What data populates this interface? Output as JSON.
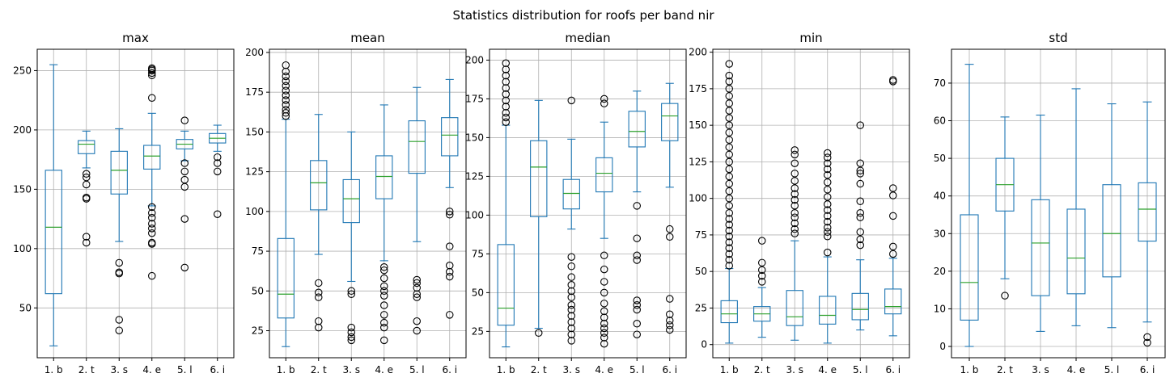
{
  "chart_data": {
    "type": "box",
    "title": "Statistics distribution for roofs per band nir",
    "categories": [
      "1. b",
      "2. t",
      "3. s",
      "4. e",
      "5. l",
      "6. i"
    ],
    "style": {
      "box_color": "#1f77b4",
      "median_color": "#2ca02c",
      "outlier_edge": "#000000",
      "grid_color": "#b0b0b0"
    },
    "grid": true,
    "panels": [
      {
        "title": "max",
        "ylim": [
          8,
          268
        ],
        "yticks": [
          50,
          100,
          150,
          200,
          250
        ],
        "boxes": [
          {
            "whislo": 18,
            "q1": 62,
            "med": 118,
            "q3": 166,
            "whishi": 255,
            "fliers": []
          },
          {
            "whislo": 168,
            "q1": 180,
            "med": 188,
            "q3": 191,
            "whishi": 199,
            "fliers": [
              105,
              110,
              142,
              143,
              154,
              160,
              163
            ]
          },
          {
            "whislo": 106,
            "q1": 146,
            "med": 166,
            "q3": 182,
            "whishi": 201,
            "fliers": [
              31,
              40,
              79,
              80,
              88
            ]
          },
          {
            "whislo": 136,
            "q1": 167,
            "med": 178,
            "q3": 187,
            "whishi": 214,
            "fliers": [
              77,
              104,
              105,
              113,
              117,
              121,
              126,
              130,
              135,
              227,
              246,
              248,
              250,
              251,
              252
            ]
          },
          {
            "whislo": 174,
            "q1": 184,
            "med": 188,
            "q3": 192,
            "whishi": 199,
            "fliers": [
              84,
              125,
              152,
              158,
              165,
              172,
              208
            ]
          },
          {
            "whislo": 182,
            "q1": 189,
            "med": 193,
            "q3": 197,
            "whishi": 204,
            "fliers": [
              129,
              165,
              172,
              177
            ]
          }
        ]
      },
      {
        "title": "mean",
        "ylim": [
          8,
          202
        ],
        "yticks": [
          25,
          50,
          75,
          100,
          125,
          150,
          175,
          200
        ],
        "boxes": [
          {
            "whislo": 15,
            "q1": 33,
            "med": 48,
            "q3": 83,
            "whishi": 158,
            "fliers": [
              160,
              162,
              164,
              167,
              170,
              173,
              176,
              179,
              182,
              185,
              188,
              192
            ]
          },
          {
            "whislo": 73,
            "q1": 101,
            "med": 118,
            "q3": 132,
            "whishi": 161,
            "fliers": [
              27,
              31,
              46,
              49,
              55
            ]
          },
          {
            "whislo": 56,
            "q1": 93,
            "med": 108,
            "q3": 120,
            "whishi": 150,
            "fliers": [
              19,
              21,
              24,
              27,
              48,
              50
            ]
          },
          {
            "whislo": 69,
            "q1": 108,
            "med": 122,
            "q3": 135,
            "whishi": 167,
            "fliers": [
              19,
              27,
              30,
              35,
              41,
              47,
              50,
              53,
              58,
              63,
              65
            ]
          },
          {
            "whislo": 81,
            "q1": 124,
            "med": 144,
            "q3": 157,
            "whishi": 178,
            "fliers": [
              25,
              31,
              46,
              48,
              52,
              55,
              57
            ]
          },
          {
            "whislo": 115,
            "q1": 135,
            "med": 148,
            "q3": 159,
            "whishi": 183,
            "fliers": [
              35,
              59,
              62,
              66,
              78,
              98,
              100
            ]
          }
        ]
      },
      {
        "title": "median",
        "ylim": [
          8,
          207
        ],
        "yticks": [
          25,
          50,
          75,
          100,
          125,
          150,
          175,
          200
        ],
        "boxes": [
          {
            "whislo": 15,
            "q1": 29,
            "med": 40,
            "q3": 81,
            "whishi": 158,
            "fliers": [
              160,
              163,
              166,
              170,
              174,
              178,
              182,
              186,
              190,
              194,
              198
            ]
          },
          {
            "whislo": 27,
            "q1": 99,
            "med": 131,
            "q3": 148,
            "whishi": 174,
            "fliers": [
              24
            ]
          },
          {
            "whislo": 91,
            "q1": 104,
            "med": 114,
            "q3": 123,
            "whishi": 149,
            "fliers": [
              19,
              23,
              27,
              31,
              35,
              39,
              42,
              47,
              51,
              55,
              60,
              67,
              73,
              174
            ]
          },
          {
            "whislo": 85,
            "q1": 115,
            "med": 127,
            "q3": 137,
            "whishi": 160,
            "fliers": [
              17,
              21,
              24,
              27,
              30,
              34,
              38,
              43,
              50,
              57,
              65,
              74,
              172,
              175
            ]
          },
          {
            "whislo": 115,
            "q1": 144,
            "med": 154,
            "q3": 167,
            "whishi": 180,
            "fliers": [
              23,
              30,
              39,
              42,
              45,
              71,
              74,
              85,
              106
            ]
          },
          {
            "whislo": 118,
            "q1": 148,
            "med": 164,
            "q3": 172,
            "whishi": 185,
            "fliers": [
              26,
              29,
              32,
              36,
              46,
              86,
              91
            ]
          }
        ]
      },
      {
        "title": "min",
        "ylim": [
          -9,
          202
        ],
        "yticks": [
          0,
          25,
          50,
          75,
          100,
          125,
          150,
          175,
          200
        ],
        "boxes": [
          {
            "whislo": 1,
            "q1": 15,
            "med": 21,
            "q3": 30,
            "whishi": 52,
            "fliers": [
              54,
              58,
              62,
              66,
              70,
              74,
              78,
              82,
              86,
              90,
              95,
              100,
              105,
              110,
              115,
              120,
              125,
              130,
              135,
              140,
              145,
              150,
              155,
              160,
              165,
              170,
              175,
              180,
              184,
              192
            ]
          },
          {
            "whislo": 5,
            "q1": 16,
            "med": 21,
            "q3": 26,
            "whishi": 39,
            "fliers": [
              43,
              47,
              51,
              56,
              71
            ]
          },
          {
            "whislo": 3,
            "q1": 13,
            "med": 19,
            "q3": 37,
            "whishi": 71,
            "fliers": [
              76,
              79,
              83,
              87,
              90,
              95,
              99,
              103,
              107,
              112,
              117,
              124,
              130,
              133
            ]
          },
          {
            "whislo": 1,
            "q1": 14,
            "med": 20,
            "q3": 33,
            "whishi": 60,
            "fliers": [
              63,
              74,
              77,
              80,
              84,
              88,
              92,
              96,
              101,
              106,
              111,
              116,
              120,
              124,
              128,
              131
            ]
          },
          {
            "whislo": 10,
            "q1": 17,
            "med": 24,
            "q3": 35,
            "whishi": 58,
            "fliers": [
              68,
              72,
              77,
              87,
              90,
              98,
              110,
              117,
              119,
              124,
              150
            ]
          },
          {
            "whislo": 6,
            "q1": 21,
            "med": 26,
            "q3": 38,
            "whishi": 59,
            "fliers": [
              62,
              67,
              88,
              102,
              107,
              180,
              181
            ]
          }
        ]
      },
      {
        "title": "std",
        "ylim": [
          -3,
          79
        ],
        "yticks": [
          0,
          10,
          20,
          30,
          40,
          50,
          60,
          70
        ],
        "boxes": [
          {
            "whislo": 0,
            "q1": 7,
            "med": 17,
            "q3": 35,
            "whishi": 75,
            "fliers": []
          },
          {
            "whislo": 18,
            "q1": 36,
            "med": 43,
            "q3": 50,
            "whishi": 61,
            "fliers": [
              13.5
            ]
          },
          {
            "whislo": 4,
            "q1": 13.5,
            "med": 27.5,
            "q3": 39,
            "whishi": 61.5,
            "fliers": []
          },
          {
            "whislo": 5.5,
            "q1": 14,
            "med": 23.5,
            "q3": 36.5,
            "whishi": 68.5,
            "fliers": []
          },
          {
            "whislo": 5,
            "q1": 18.5,
            "med": 30,
            "q3": 43,
            "whishi": 64.5,
            "fliers": []
          },
          {
            "whislo": 6.5,
            "q1": 28,
            "med": 36.5,
            "q3": 43.5,
            "whishi": 65,
            "fliers": [
              1,
              2.5
            ]
          }
        ]
      }
    ]
  }
}
